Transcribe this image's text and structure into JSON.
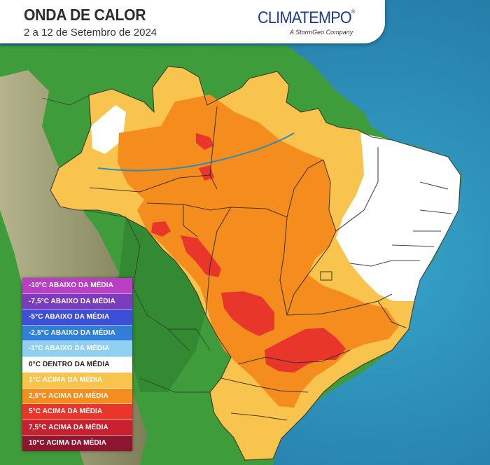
{
  "header": {
    "title": "ONDA DE CALOR",
    "subtitle": "2 a 12 de Setembro de 2024",
    "brand": "CLIMATEMPO",
    "brand_mark": "®",
    "brand_sub": "A StormGeo Company"
  },
  "colors": {
    "ocean": "#2a8fb8",
    "terrain": "#3e9c3a",
    "above_1": "#f8c44e",
    "above_2_5": "#f58c1e",
    "above_5": "#e8362a",
    "within": "#ffffff",
    "border": "#2a2a2a"
  },
  "legend": [
    {
      "label": "-10°C ABAIXO DA MÉDIA",
      "bg": "#b83ec4",
      "fg": "#ffffff"
    },
    {
      "label": "-7,5°C ABAIXO DA MÉDIA",
      "bg": "#7a3bbd",
      "fg": "#ffffff"
    },
    {
      "label": "-5°C ABAIXO DA MÉDIA",
      "bg": "#3c4fd6",
      "fg": "#ffffff"
    },
    {
      "label": "-2,5°C ABAIXO DA MÉDIA",
      "bg": "#2f7ed8",
      "fg": "#ffffff"
    },
    {
      "label": "-1°C ABAIXO DA MÉDIA",
      "bg": "#8fd0f0",
      "fg": "#ffffff"
    },
    {
      "label": "0°C DENTRO DA MÉDIA",
      "bg": "#ffffff",
      "fg": "#222222"
    },
    {
      "label": "1°C ACIMA DA MÉDIA",
      "bg": "#f8c44e",
      "fg": "#ffffff"
    },
    {
      "label": "2,5°C ACIMA DA MÉDIA",
      "bg": "#f58c1e",
      "fg": "#ffffff"
    },
    {
      "label": "5°C ACIMA DA MÉDIA",
      "bg": "#e8362a",
      "fg": "#ffffff"
    },
    {
      "label": "7,5°C ACIMA DA MÉDIA",
      "bg": "#c8202e",
      "fg": "#ffffff"
    },
    {
      "label": "10°C ACIMA DA MÉDIA",
      "bg": "#8e1530",
      "fg": "#ffffff"
    }
  ]
}
